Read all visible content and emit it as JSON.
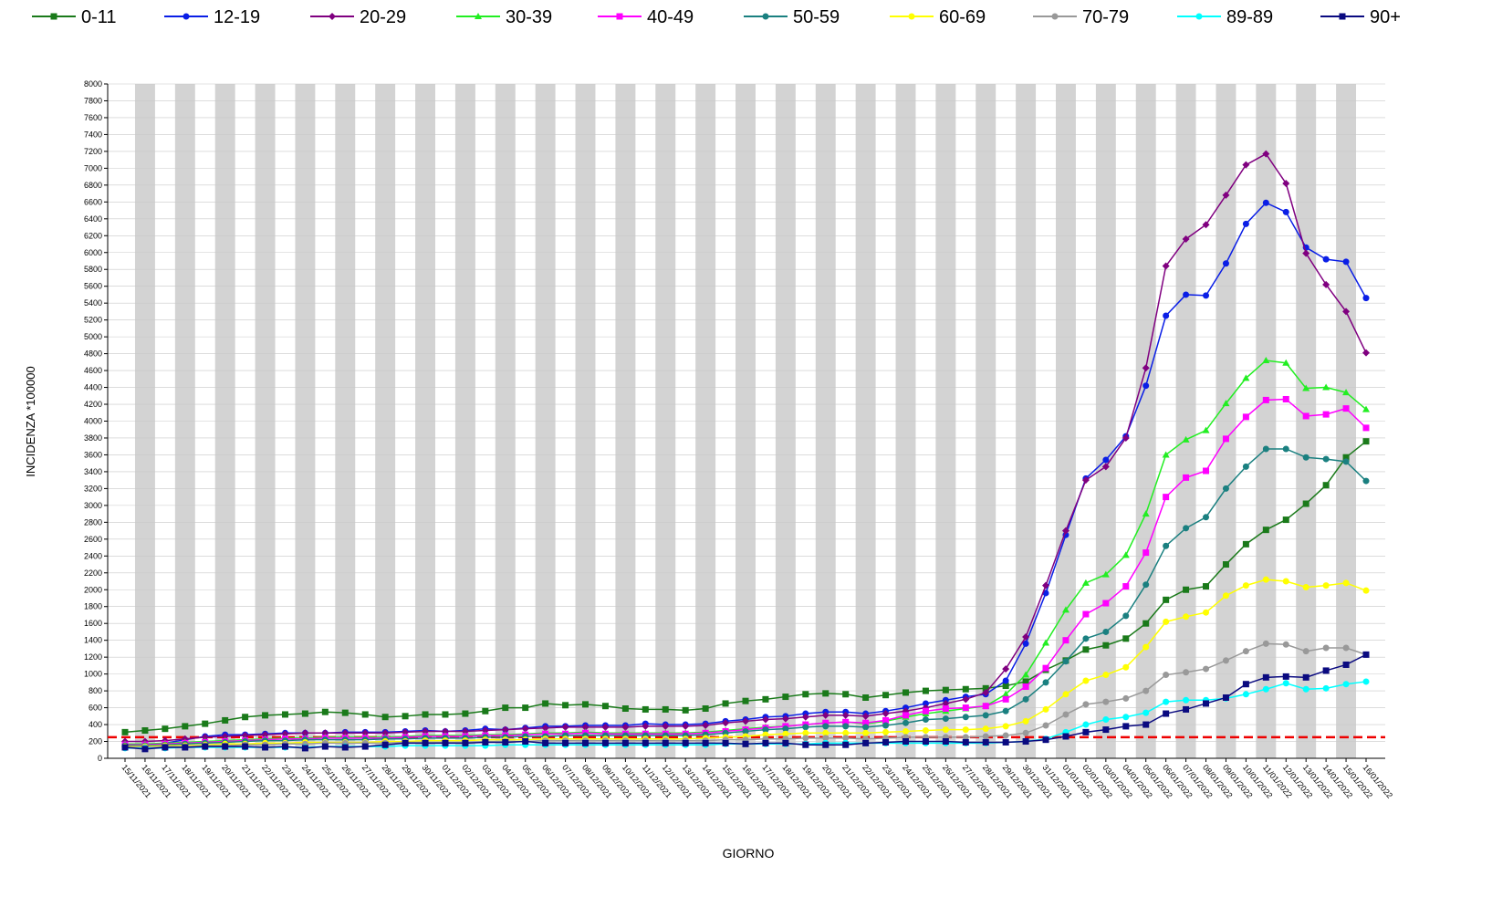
{
  "chart_data": {
    "type": "line",
    "xlabel": "GIORNO",
    "ylabel": "INCIDENZA *100000",
    "categories": [
      "15/11/2021",
      "16/11/2021",
      "17/11/2021",
      "18/11/2021",
      "19/11/2021",
      "20/11/2021",
      "21/11/2021",
      "22/11/2021",
      "23/11/2021",
      "24/11/2021",
      "25/11/2021",
      "26/11/2021",
      "27/11/2021",
      "28/11/2021",
      "29/11/2021",
      "30/11/2021",
      "01/12/2021",
      "02/12/2021",
      "03/12/2021",
      "04/12/2021",
      "05/12/2021",
      "06/12/2021",
      "07/12/2021",
      "08/12/2021",
      "09/12/2021",
      "10/12/2021",
      "11/12/2021",
      "12/12/2021",
      "13/12/2021",
      "14/12/2021",
      "15/12/2021",
      "16/12/2021",
      "17/12/2021",
      "18/12/2021",
      "19/12/2021",
      "20/12/2021",
      "21/12/2021",
      "22/12/2021",
      "23/12/2021",
      "24/12/2021",
      "25/12/2021",
      "26/12/2021",
      "27/12/2021",
      "28/12/2021",
      "29/12/2021",
      "30/12/2021",
      "31/12/2021",
      "01/01/2022",
      "02/01/2022",
      "03/01/2022",
      "04/01/2022",
      "05/01/2022",
      "06/01/2022",
      "07/01/2022",
      "08/01/2022",
      "09/01/2022",
      "10/01/2022",
      "11/01/2022",
      "12/01/2022",
      "13/01/2022",
      "14/01/2022",
      "15/01/2022",
      "16/01/2022"
    ],
    "series": [
      {
        "name": "0-11",
        "color": "#1a7a1a",
        "marker": "square",
        "values": [
          310,
          330,
          350,
          380,
          410,
          450,
          490,
          510,
          520,
          530,
          550,
          540,
          520,
          490,
          500,
          520,
          520,
          530,
          560,
          600,
          600,
          650,
          630,
          640,
          620,
          590,
          580,
          580,
          570,
          590,
          650,
          680,
          700,
          730,
          760,
          770,
          760,
          720,
          750,
          780,
          800,
          810,
          820,
          830,
          860,
          910,
          1050,
          1160,
          1290,
          1340,
          1420,
          1600,
          1880,
          2000,
          2040,
          2300,
          2540,
          2710,
          2830,
          3020,
          3240,
          3570,
          3760
        ]
      },
      {
        "name": "12-19",
        "color": "#0a1ee6",
        "marker": "circle",
        "values": [
          150,
          160,
          180,
          220,
          260,
          280,
          280,
          290,
          300,
          300,
          300,
          310,
          310,
          310,
          320,
          330,
          320,
          330,
          350,
          340,
          360,
          380,
          380,
          390,
          390,
          390,
          410,
          400,
          400,
          410,
          440,
          460,
          490,
          500,
          530,
          550,
          550,
          530,
          560,
          600,
          650,
          690,
          730,
          760,
          920,
          1360,
          1960,
          2650,
          3320,
          3540,
          3820,
          4420,
          5250,
          5500,
          5490,
          5870,
          6340,
          6590,
          6480,
          6060,
          5920,
          5890,
          5460
        ]
      },
      {
        "name": "20-29",
        "color": "#800080",
        "marker": "diamond",
        "values": [
          200,
          200,
          210,
          230,
          250,
          260,
          270,
          280,
          290,
          300,
          300,
          300,
          300,
          300,
          310,
          320,
          320,
          320,
          330,
          340,
          350,
          360,
          370,
          370,
          370,
          370,
          380,
          380,
          380,
          390,
          420,
          440,
          460,
          470,
          490,
          510,
          510,
          500,
          530,
          560,
          600,
          650,
          700,
          780,
          1060,
          1440,
          2050,
          2700,
          3300,
          3460,
          3800,
          4630,
          5840,
          6160,
          6330,
          6680,
          7040,
          7170,
          6820,
          5990,
          5620,
          5300,
          4810
        ]
      },
      {
        "name": "30-39",
        "color": "#22ee22",
        "marker": "triangle",
        "values": [
          170,
          170,
          180,
          190,
          200,
          210,
          220,
          230,
          240,
          240,
          250,
          250,
          250,
          250,
          260,
          270,
          270,
          270,
          280,
          280,
          290,
          300,
          300,
          310,
          300,
          300,
          300,
          300,
          300,
          310,
          330,
          350,
          370,
          380,
          400,
          420,
          430,
          410,
          440,
          490,
          530,
          560,
          590,
          620,
          760,
          990,
          1370,
          1760,
          2080,
          2180,
          2410,
          2900,
          3600,
          3780,
          3890,
          4210,
          4510,
          4720,
          4690,
          4390,
          4400,
          4340,
          4140
        ]
      },
      {
        "name": "40-49",
        "color": "#ff00ff",
        "marker": "square",
        "values": [
          160,
          160,
          170,
          180,
          190,
          200,
          210,
          220,
          230,
          230,
          240,
          240,
          240,
          240,
          250,
          260,
          260,
          260,
          270,
          270,
          280,
          290,
          290,
          300,
          290,
          290,
          290,
          290,
          290,
          300,
          320,
          340,
          360,
          380,
          400,
          420,
          430,
          420,
          450,
          510,
          560,
          590,
          600,
          620,
          700,
          850,
          1070,
          1400,
          1710,
          1840,
          2040,
          2440,
          3100,
          3330,
          3410,
          3790,
          4050,
          4250,
          4260,
          4060,
          4080,
          4150,
          3920
        ]
      },
      {
        "name": "50-59",
        "color": "#1a8080",
        "marker": "circle",
        "values": [
          150,
          150,
          160,
          170,
          180,
          190,
          200,
          210,
          210,
          220,
          220,
          220,
          220,
          230,
          230,
          240,
          240,
          240,
          250,
          250,
          260,
          260,
          270,
          270,
          270,
          270,
          270,
          270,
          270,
          280,
          300,
          320,
          340,
          350,
          370,
          380,
          380,
          370,
          390,
          420,
          460,
          470,
          490,
          510,
          560,
          700,
          900,
          1150,
          1420,
          1500,
          1690,
          2060,
          2520,
          2730,
          2860,
          3200,
          3460,
          3670,
          3670,
          3570,
          3550,
          3520,
          3290
        ]
      },
      {
        "name": "60-69",
        "color": "#ffff00",
        "marker": "circle",
        "values": [
          140,
          140,
          150,
          150,
          160,
          170,
          170,
          180,
          180,
          190,
          190,
          190,
          190,
          200,
          200,
          210,
          210,
          210,
          220,
          220,
          220,
          230,
          230,
          230,
          230,
          230,
          230,
          230,
          230,
          240,
          250,
          260,
          280,
          290,
          300,
          300,
          300,
          300,
          310,
          320,
          330,
          340,
          340,
          350,
          380,
          440,
          580,
          760,
          920,
          990,
          1080,
          1320,
          1620,
          1680,
          1730,
          1930,
          2050,
          2120,
          2100,
          2030,
          2050,
          2080,
          1990
        ]
      },
      {
        "name": "70-79",
        "color": "#999999",
        "marker": "circle",
        "values": [
          130,
          130,
          140,
          140,
          150,
          150,
          160,
          160,
          170,
          170,
          180,
          180,
          180,
          180,
          190,
          190,
          190,
          190,
          200,
          200,
          200,
          210,
          210,
          210,
          210,
          210,
          210,
          210,
          210,
          210,
          220,
          220,
          230,
          230,
          240,
          240,
          240,
          230,
          240,
          250,
          250,
          250,
          250,
          260,
          270,
          300,
          390,
          520,
          640,
          670,
          710,
          800,
          990,
          1020,
          1060,
          1160,
          1270,
          1360,
          1350,
          1270,
          1310,
          1310,
          1230
        ]
      },
      {
        "name": "89-89",
        "color": "#00ffff",
        "marker": "circle",
        "values": [
          120,
          120,
          120,
          130,
          130,
          130,
          130,
          130,
          130,
          130,
          140,
          140,
          140,
          140,
          150,
          150,
          150,
          150,
          150,
          160,
          160,
          160,
          160,
          160,
          160,
          160,
          160,
          160,
          160,
          160,
          170,
          170,
          170,
          170,
          170,
          180,
          180,
          180,
          180,
          180,
          180,
          180,
          180,
          180,
          190,
          200,
          230,
          310,
          400,
          460,
          490,
          540,
          670,
          690,
          690,
          710,
          760,
          820,
          890,
          820,
          830,
          880,
          910
        ]
      },
      {
        "name": "90+",
        "color": "#0a0a80",
        "marker": "square",
        "values": [
          130,
          110,
          130,
          130,
          140,
          140,
          140,
          130,
          140,
          120,
          140,
          130,
          140,
          160,
          180,
          180,
          180,
          180,
          190,
          190,
          200,
          180,
          180,
          180,
          180,
          180,
          180,
          180,
          180,
          180,
          180,
          170,
          180,
          180,
          160,
          160,
          160,
          180,
          190,
          200,
          200,
          200,
          190,
          190,
          190,
          200,
          220,
          260,
          310,
          340,
          380,
          400,
          530,
          580,
          650,
          720,
          880,
          960,
          970,
          960,
          1040,
          1110,
          1230
        ]
      }
    ],
    "hline": {
      "value": 250,
      "color": "#ee0000"
    },
    "ylim": [
      0,
      8000
    ],
    "yticks": [
      0,
      200,
      400,
      600,
      800,
      1000,
      1200,
      1400,
      1600,
      1800,
      2000,
      2200,
      2400,
      2600,
      2800,
      3000,
      3200,
      3400,
      3600,
      3800,
      4000,
      4200,
      4400,
      4600,
      4800,
      5000,
      5200,
      5400,
      5600,
      5800,
      6000,
      6200,
      6400,
      6600,
      6800,
      7000,
      7200,
      7400,
      7600,
      7800,
      8000
    ],
    "grid": true,
    "legend": "top"
  }
}
